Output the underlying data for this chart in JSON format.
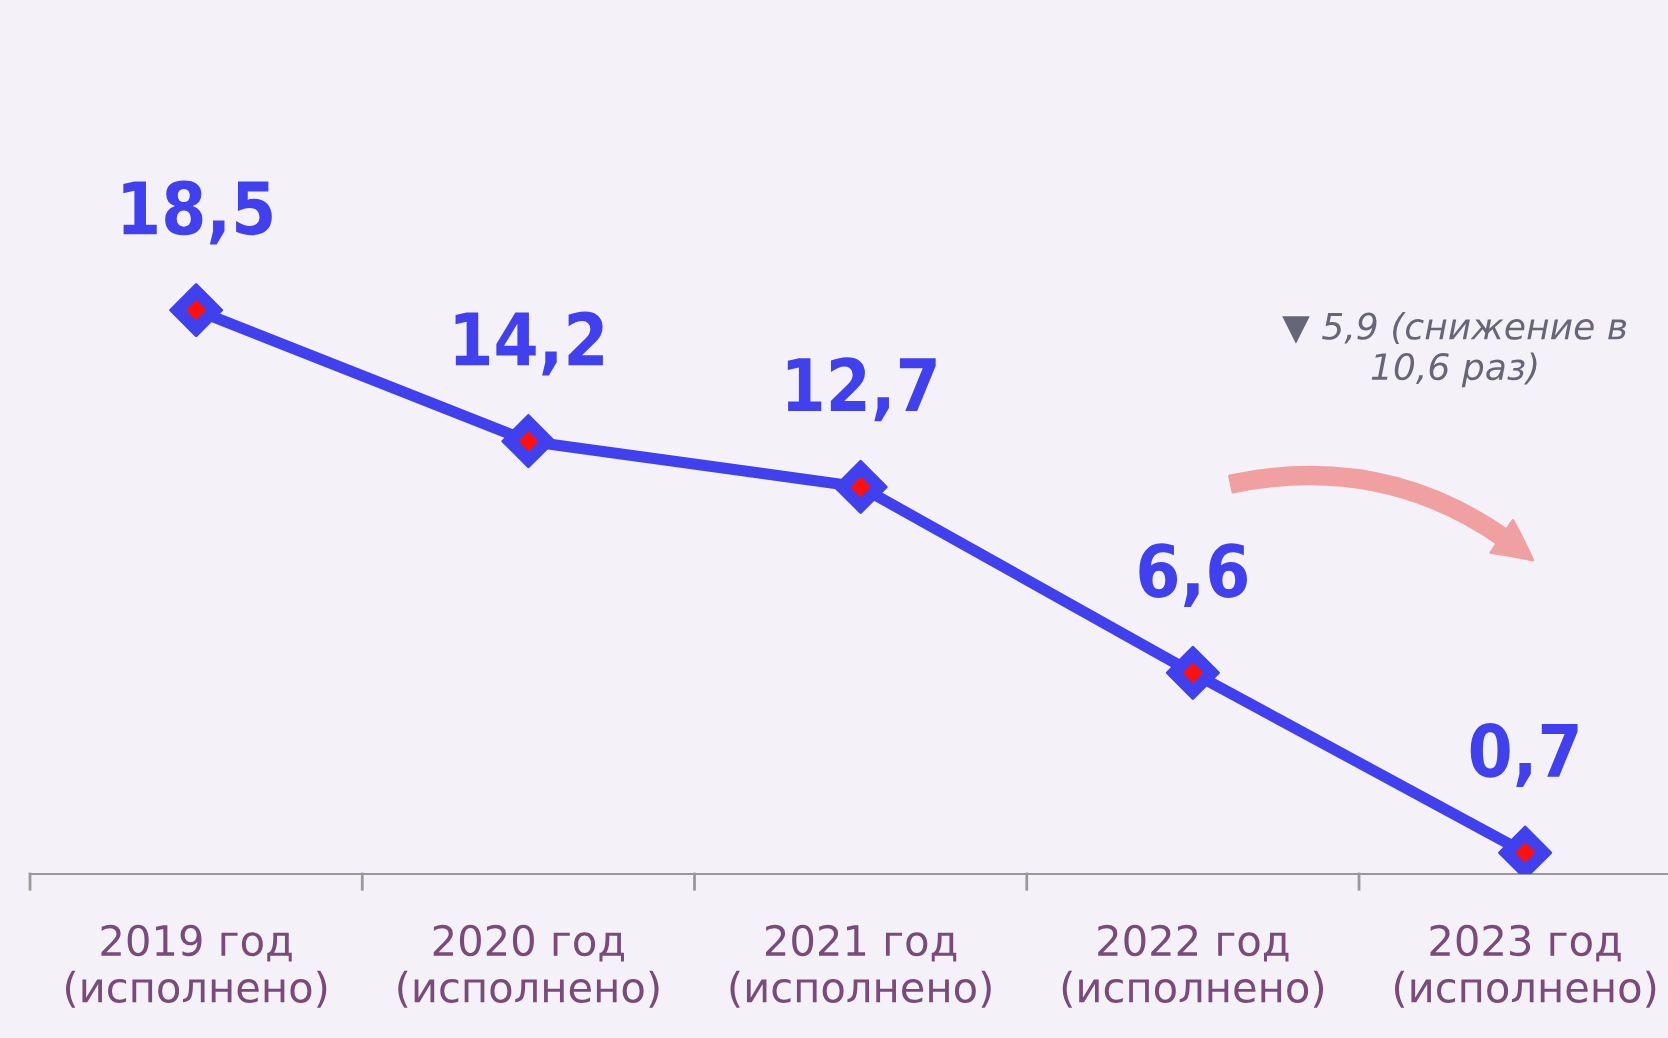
{
  "chart_data": {
    "type": "line",
    "categories": [
      "2019 год\n(исполнено)",
      "2020 год\n(исполнено)",
      "2021 год\n(исполнено)",
      "2022 год\n(исполнено)",
      "2023 год\n(исполнено)"
    ],
    "series": [
      {
        "color": "#4040ee",
        "values": [
          18.5,
          14.2,
          12.7,
          6.6,
          0.7
        ],
        "value_labels": [
          "18,5",
          "14,2",
          "12,7",
          "6,6",
          "0,7"
        ]
      }
    ],
    "marker": "diamond",
    "line_style": "solid",
    "grid": false,
    "legend": false,
    "annotations": [
      "▼ 5,9 (снижение в\n10,6 раз)"
    ]
  }
}
